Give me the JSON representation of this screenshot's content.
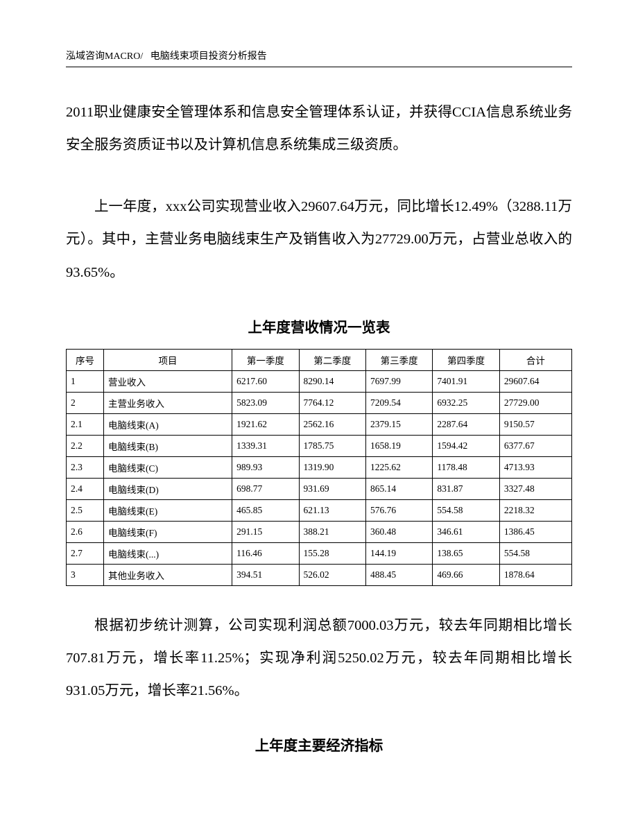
{
  "header": {
    "left": "泓域咨询MACRO/",
    "right": "电脑线束项目投资分析报告"
  },
  "para1": "2011职业健康安全管理体系和信息安全管理体系认证，并获得CCIA信息系统业务安全服务资质证书以及计算机信息系统集成三级资质。",
  "para2": "上一年度，xxx公司实现营业收入29607.64万元，同比增长12.49%（3288.11万元）。其中，主营业务电脑线束生产及销售收入为27729.00万元，占营业总收入的93.65%。",
  "tableTitle": "上年度营收情况一览表",
  "table": {
    "columns": [
      "序号",
      "项目",
      "第一季度",
      "第二季度",
      "第三季度",
      "第四季度",
      "合计"
    ],
    "col_widths_pct": [
      7,
      24,
      12.5,
      12.5,
      12.5,
      12.5,
      13.5
    ],
    "fontsize": 13.5,
    "border_color": "#000000",
    "rows": [
      [
        "1",
        "营业收入",
        "6217.60",
        "8290.14",
        "7697.99",
        "7401.91",
        "29607.64"
      ],
      [
        "2",
        "主营业务收入",
        "5823.09",
        "7764.12",
        "7209.54",
        "6932.25",
        "27729.00"
      ],
      [
        "2.1",
        "电脑线束(A)",
        "1921.62",
        "2562.16",
        "2379.15",
        "2287.64",
        "9150.57"
      ],
      [
        "2.2",
        "电脑线束(B)",
        "1339.31",
        "1785.75",
        "1658.19",
        "1594.42",
        "6377.67"
      ],
      [
        "2.3",
        "电脑线束(C)",
        "989.93",
        "1319.90",
        "1225.62",
        "1178.48",
        "4713.93"
      ],
      [
        "2.4",
        "电脑线束(D)",
        "698.77",
        "931.69",
        "865.14",
        "831.87",
        "3327.48"
      ],
      [
        "2.5",
        "电脑线束(E)",
        "465.85",
        "621.13",
        "576.76",
        "554.58",
        "2218.32"
      ],
      [
        "2.6",
        "电脑线束(F)",
        "291.15",
        "388.21",
        "360.48",
        "346.61",
        "1386.45"
      ],
      [
        "2.7",
        "电脑线束(...)",
        "116.46",
        "155.28",
        "144.19",
        "138.65",
        "554.58"
      ],
      [
        "3",
        "其他业务收入",
        "394.51",
        "526.02",
        "488.45",
        "469.66",
        "1878.64"
      ]
    ]
  },
  "para3": "根据初步统计测算，公司实现利润总额7000.03万元，较去年同期相比增长707.81万元，增长率11.25%；实现净利润5250.02万元，较去年同期相比增长931.05万元，增长率21.56%。",
  "tableTitle2": "上年度主要经济指标",
  "style": {
    "page_bg": "#ffffff",
    "text_color": "#000000",
    "body_fontsize": 20.5,
    "body_lineheight": 2.3,
    "header_fontsize": 14,
    "header_border": "#000000",
    "font_family": "SimSun"
  }
}
